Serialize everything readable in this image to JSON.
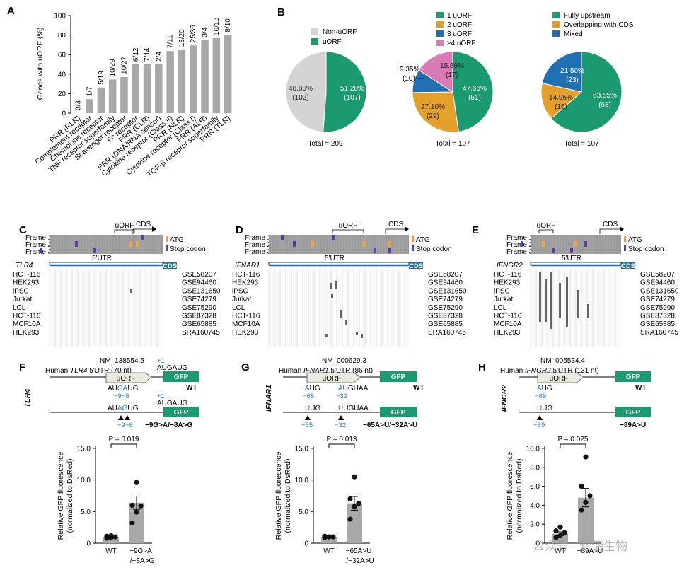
{
  "colors": {
    "bar": "#a8a8a8",
    "green": "#1b9a72",
    "orange": "#e4a02a",
    "blue": "#1f6fb2",
    "pink": "#d97bb6",
    "grey": "#d4d4d4",
    "mut_blue": "#2a7fc9",
    "ribo_bg": "#9a9a9a",
    "purple": "#5b3fa0",
    "atg": "#f4a23a"
  },
  "panels": {
    "A": "A",
    "B": "B",
    "C": "C",
    "D": "D",
    "E": "E",
    "F": "F",
    "G": "G",
    "H": "H"
  },
  "panelA": {
    "ylabel": "Genes with uORF (%)",
    "yticks": [
      "0",
      "20",
      "40",
      "60",
      "80",
      "100"
    ]
  },
  "chart_data": [
    {
      "type": "bar",
      "ylim": [
        0,
        100
      ],
      "ylabel": "Genes with uORF (%)",
      "categories": [
        "PRR (RLR)",
        "Complement receptor",
        "Chemokine receptor",
        "TNF receptor superfamily",
        "Scavenger receptor",
        "Fc receptor",
        "PRR (CLR)",
        "PRR (DNA/RNA sensor)",
        "Cytokine receptor (Class II)",
        "PRR (NLR)",
        "Cytokine receptor (Class I)",
        "PRR (ALR)",
        "TGF-β receptor superfamily",
        "PRR (TLR)"
      ],
      "values": [
        0,
        14.3,
        26.3,
        34.5,
        37.0,
        50.0,
        50.0,
        50.0,
        63.6,
        65.0,
        69.4,
        75.0,
        76.9,
        80.0
      ],
      "labels": [
        "0/3",
        "1/7",
        "5/19",
        "10/29",
        "10/27",
        "6/12",
        "7/14",
        "2/4",
        "7/11",
        "13/20",
        "25/36",
        "3/4",
        "10/13",
        "8/10"
      ]
    },
    {
      "type": "pie",
      "legend": [
        "Non-uORF",
        "uORF"
      ],
      "total": "Total = 209",
      "slices": [
        {
          "name": "uORF",
          "value": 51.2,
          "pct": "51.20%",
          "n": "(107)",
          "color": "green"
        },
        {
          "name": "Non-uORF",
          "value": 48.8,
          "pct": "48.80%",
          "n": "(102)",
          "color": "grey"
        }
      ]
    },
    {
      "type": "pie",
      "legend": [
        "1 uORF",
        "2 uORF",
        "3 uORF",
        "≥4 uORF"
      ],
      "total": "Total = 107",
      "slices": [
        {
          "name": "1 uORF",
          "value": 47.66,
          "pct": "47.66%",
          "n": "(51)",
          "color": "green"
        },
        {
          "name": "2 uORF",
          "value": 27.1,
          "pct": "27.10%",
          "n": "(29)",
          "color": "orange"
        },
        {
          "name": "3 uORF",
          "value": 9.35,
          "pct": "9.35%",
          "n": "(10)",
          "color": "blue"
        },
        {
          "name": "≥4 uORF",
          "value": 15.89,
          "pct": "15.89%",
          "n": "(17)",
          "color": "pink"
        }
      ]
    },
    {
      "type": "pie",
      "legend": [
        "Fully upstream",
        "Overlapping with CDS",
        "Mixed"
      ],
      "total": "Total = 107",
      "slices": [
        {
          "name": "Fully upstream",
          "value": 63.55,
          "pct": "63.55%",
          "n": "(68)",
          "color": "green"
        },
        {
          "name": "Overlapping with CDS",
          "value": 14.95,
          "pct": "14.95%",
          "n": "(16)",
          "color": "orange"
        },
        {
          "name": "Mixed",
          "value": 21.5,
          "pct": "21.50%",
          "n": "(23)",
          "color": "blue"
        }
      ]
    },
    {
      "type": "bar",
      "gene": "TLR4",
      "categories": [
        "WT",
        "−9G>A\n/−8A>G"
      ],
      "values": [
        1.0,
        6.4
      ],
      "points": [
        [
          0.8,
          0.9,
          1.0,
          1.1,
          1.2
        ],
        [
          3.2,
          4.9,
          5.9,
          6.0,
          9.6
        ]
      ],
      "p": "P = 0.019",
      "ylim": [
        0,
        15
      ],
      "ylabel": "Relative GFP fluorescence\n(normalized to DsRed)"
    },
    {
      "type": "bar",
      "gene": "IFNAR1",
      "categories": [
        "WT",
        "−65A>U\n/−32A>U"
      ],
      "values": [
        1.0,
        6.3
      ],
      "points": [
        [
          0.9,
          1.0,
          1.0,
          1.1
        ],
        [
          3.8,
          5.8,
          6.3,
          7.0,
          10.5
        ]
      ],
      "p": "P = 0.013",
      "ylim": [
        0,
        15
      ],
      "ylabel": "Relative GFP fluorescence\n(normalized to DsRed)"
    },
    {
      "type": "bar",
      "gene": "IFNGR2",
      "categories": [
        "WT",
        "−89A>U"
      ],
      "values": [
        1.0,
        4.8
      ],
      "points": [
        [
          0.6,
          0.8,
          1.1,
          1.3,
          1.7
        ],
        [
          3.5,
          4.3,
          5.0,
          6.0,
          9.1
        ]
      ],
      "p": "P = 0.025",
      "ylim": [
        0,
        10
      ],
      "ylabel": "Relative GFP fluorescence\n(normalized to DsRed)"
    }
  ],
  "panelB": {
    "p1": {
      "legend": [
        "Non-uORF",
        "uORF"
      ],
      "total": "Total = 209"
    },
    "p2": {
      "legend": [
        "1 uORF",
        "2 uORF",
        "3 uORF",
        "≥4 uORF"
      ],
      "total": "Total = 107",
      "out_pct": "9.35%",
      "out_n": "(10)"
    },
    "p3": {
      "legend": [
        "Fully upstream",
        "Overlapping with CDS",
        "Mixed"
      ],
      "total": "Total = 107"
    }
  },
  "riboText": {
    "frames": [
      "Frame 1",
      "Frame 2",
      "Frame 3"
    ],
    "atg": "ATG",
    "stop": "Stop codon",
    "uorf": "uORF",
    "cds": "CDS",
    "utr": "5'UTR",
    "cells": [
      "HCT-116",
      "HEK293",
      "iPSC",
      "Jurkat",
      "LCL",
      "HCT-116",
      "MCF10A",
      "HEK293"
    ],
    "gse": [
      "GSE58207",
      "GSE94460",
      "GSE131650",
      "GSE74279",
      "GSE75290",
      "GSE87328",
      "GSE65885",
      "SRA160745"
    ],
    "genes": [
      "TLR4",
      "IFNAR1",
      "IFNGR2"
    ]
  },
  "panelF": {
    "side": "TLR4",
    "nm": "NM_138554.5",
    "title_pre": "Human ",
    "title_gene": "TLR4",
    "title_post": " 5'UTR (70 nt)",
    "plus1a": "+1",
    "seq_aug": "AUGAUG",
    "wt": "WT",
    "mut_seq1a": "AU",
    "mut_seq1b": "GA",
    "mut_seq1c": "UG",
    "pos1": "−9−8",
    "plus1b": "+1",
    "mut_seq2a": "AU",
    "mut_seq2b": "AG",
    "mut_seq2c": "UG",
    "seq_aug2": "AUGAUG",
    "pos2": "−9−8",
    "mut": "−9G>A/−8A>G",
    "uorf": "uORF",
    "gfp": "GFP"
  },
  "panelG": {
    "side": "IFNAR1",
    "nm": "NM_000629.3",
    "title_pre": "Human ",
    "title_gene": "IFNAR1",
    "title_post": " 5'UTR (86 nt)",
    "a1": "A",
    "a1b": "UG",
    "a2": "A",
    "a2b": "UGUAA",
    "p1": "−65",
    "p2": "−32",
    "u1": "U",
    "u1b": "UG",
    "u2": "U",
    "u2b": "UGUAA",
    "wt": "WT",
    "mut": "−65A>U/−32A>U",
    "uorf": "uORF",
    "gfp": "GFP"
  },
  "panelH": {
    "side": "IFNGR2",
    "nm": "NM_005534.4",
    "title_pre": "Human ",
    "title_gene": "IFNGR2",
    "title_post": " 5'UTR (131 nt)",
    "a1": "A",
    "a1b": "UG",
    "p1": "−89",
    "u1": "U",
    "u1b": "UG",
    "wt": "WT",
    "mut": "−89A>U",
    "uorf": "uORF",
    "gfp": "GFP"
  },
  "barTicks": {
    "F": [
      "0",
      "5.0",
      "10.0",
      "15.0"
    ],
    "G": [
      "0",
      "5.0",
      "10.0",
      "15.0"
    ],
    "H": [
      "0",
      "2.0",
      "4.0",
      "6.0",
      "8.0",
      "10.0"
    ]
  },
  "barCats": {
    "F": [
      "WT",
      "−9G>A",
      "/−8A>G"
    ],
    "G": [
      "WT",
      "−65A>U",
      "/−32A>U"
    ],
    "H": [
      "WT",
      "−89A>U"
    ]
  },
  "watermark": "公众号 · 新使生物"
}
